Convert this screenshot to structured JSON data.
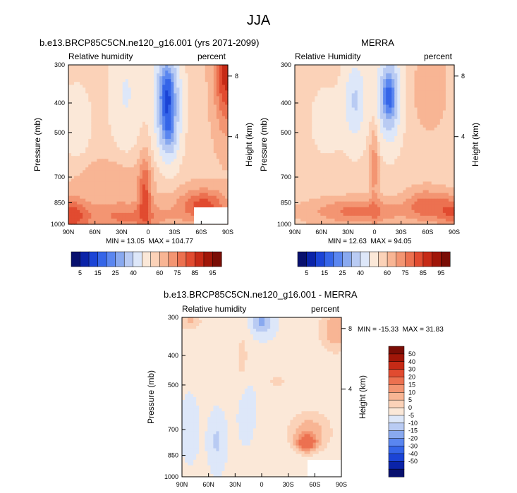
{
  "title": "JJA",
  "panels": [
    {
      "id": "model",
      "title": "b.e13.BRCP85C5CN.ne120_g16.001 (yrs 2071-2099)",
      "left_label": "Relative humidity",
      "right_label": "percent",
      "min_label": "MIN =",
      "min": "13.05",
      "max_label": "MAX =",
      "max": "104.77"
    },
    {
      "id": "merra",
      "title": "MERRA",
      "left_label": "Relative Humidity",
      "right_label": "percent",
      "min_label": "MIN =",
      "min": "12.63",
      "max_label": "MAX =",
      "max": "94.05"
    },
    {
      "id": "diff",
      "title": "b.e13.BRCP85C5CN.ne120_g16.001 - MERRA",
      "left_label": "Relative humidity",
      "right_label": "percent",
      "min_label": "MIN =",
      "min": "-15.33",
      "max_label": "MAX =",
      "max": "31.83"
    }
  ],
  "colors": {
    "text": "#000000",
    "abs_scale": [
      "#08106e",
      "#0a23a8",
      "#1b44d6",
      "#3565e8",
      "#5a86f0",
      "#89a9ef",
      "#b9cbf3",
      "#dde7f9",
      "#fbe8d8",
      "#fbd2b8",
      "#f8b594",
      "#f39572",
      "#ec7150",
      "#e14b30",
      "#c62a16",
      "#a01608",
      "#7a0d05"
    ],
    "diff_scale": [
      "#08106e",
      "#0a23a8",
      "#1b44d6",
      "#3565e8",
      "#5a86f0",
      "#89a9ef",
      "#b9cbf3",
      "#dde7f9",
      "#fbe8d8",
      "#fbd2b8",
      "#f8b594",
      "#f39572",
      "#ec7150",
      "#e14b30",
      "#c62a16",
      "#a01608",
      "#7a0d05"
    ],
    "missing": "#ffffff"
  },
  "chart_data": [
    {
      "type": "contour",
      "title": "b.e13.BRCP85C5CN.ne120_g16.001 (yrs 2071-2099)",
      "variable": "Relative humidity",
      "units": "percent",
      "xlabel": "",
      "ylabel": "Pressure (mb)",
      "ylabel_right": "Height (km)",
      "x_ticks": [
        "90N",
        "60N",
        "30N",
        "0",
        "30S",
        "60S",
        "90S"
      ],
      "y_ticks": [
        "300",
        "400",
        "500",
        "700",
        "850",
        "1000"
      ],
      "y_right_ticks": [
        "8",
        "4"
      ],
      "ylim": [
        1000,
        300
      ],
      "min": 13.05,
      "max": 104.77,
      "levels": [
        5,
        10,
        15,
        20,
        25,
        30,
        40,
        50,
        60,
        65,
        70,
        75,
        80,
        85,
        90,
        95
      ],
      "colorbar_labels": [
        "5",
        "15",
        "25",
        "40",
        "60",
        "75",
        "85",
        "95"
      ]
    },
    {
      "type": "contour",
      "title": "MERRA",
      "variable": "Relative Humidity",
      "units": "percent",
      "xlabel": "",
      "ylabel": "Pressure (mb)",
      "ylabel_right": "Height (km)",
      "x_ticks": [
        "90N",
        "60N",
        "30N",
        "0",
        "30S",
        "60S",
        "90S"
      ],
      "y_ticks": [
        "300",
        "400",
        "500",
        "700",
        "850",
        "1000"
      ],
      "y_right_ticks": [
        "8",
        "4"
      ],
      "ylim": [
        1000,
        300
      ],
      "min": 12.63,
      "max": 94.05,
      "levels": [
        5,
        10,
        15,
        20,
        25,
        30,
        40,
        50,
        60,
        65,
        70,
        75,
        80,
        85,
        90,
        95
      ],
      "colorbar_labels": [
        "5",
        "15",
        "25",
        "40",
        "60",
        "75",
        "85",
        "95"
      ]
    },
    {
      "type": "contour",
      "title": "b.e13.BRCP85C5CN.ne120_g16.001 - MERRA",
      "variable": "Relative humidity",
      "units": "percent",
      "xlabel": "",
      "ylabel": "Pressure (mb)",
      "ylabel_right": "Height (km)",
      "x_ticks": [
        "90N",
        "60N",
        "30N",
        "0",
        "30S",
        "60S",
        "90S"
      ],
      "y_ticks": [
        "300",
        "400",
        "500",
        "700",
        "850",
        "1000"
      ],
      "y_right_ticks": [
        "8",
        "4"
      ],
      "ylim": [
        1000,
        300
      ],
      "min": -15.33,
      "max": 31.83,
      "levels": [
        -50,
        -40,
        -30,
        -20,
        -15,
        -10,
        -5,
        0,
        5,
        10,
        15,
        20,
        30,
        40,
        50
      ],
      "colorbar_labels": [
        "50",
        "40",
        "30",
        "20",
        "15",
        "10",
        "5",
        "0",
        "-5",
        "-10",
        "-15",
        "-20",
        "-30",
        "-40",
        "-50"
      ]
    }
  ]
}
